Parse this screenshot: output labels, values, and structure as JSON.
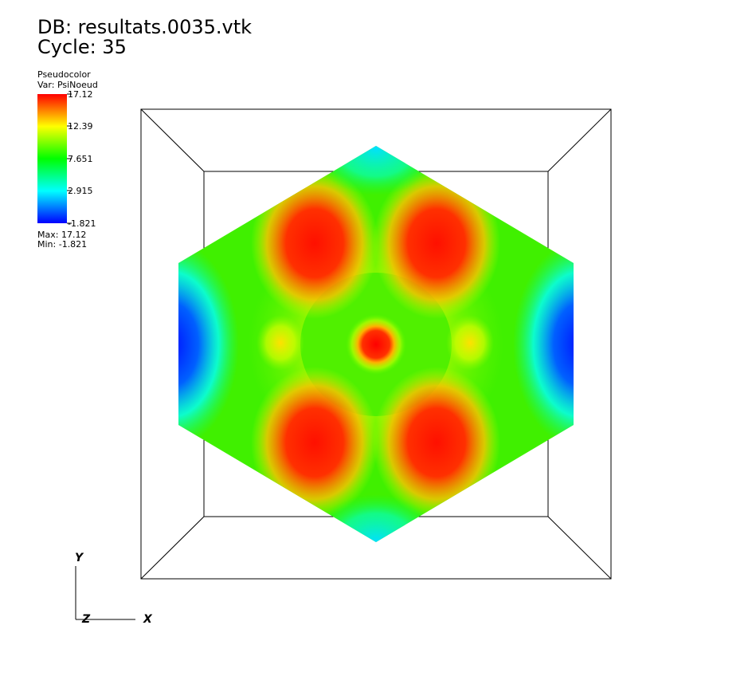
{
  "header": {
    "database": "DB: resultats.0035.vtk",
    "cycle": "Cycle: 35"
  },
  "legend": {
    "plot": "Pseudocolor",
    "variable": "Var: PsiNoeud",
    "tick_labels": [
      "17.12",
      "12.39",
      "7.651",
      "2.915",
      "-1.821"
    ],
    "max": "Max: 17.12",
    "min": "Min: -1.821"
  },
  "axes": {
    "y": "Y",
    "z": "Z",
    "x": "X"
  }
}
